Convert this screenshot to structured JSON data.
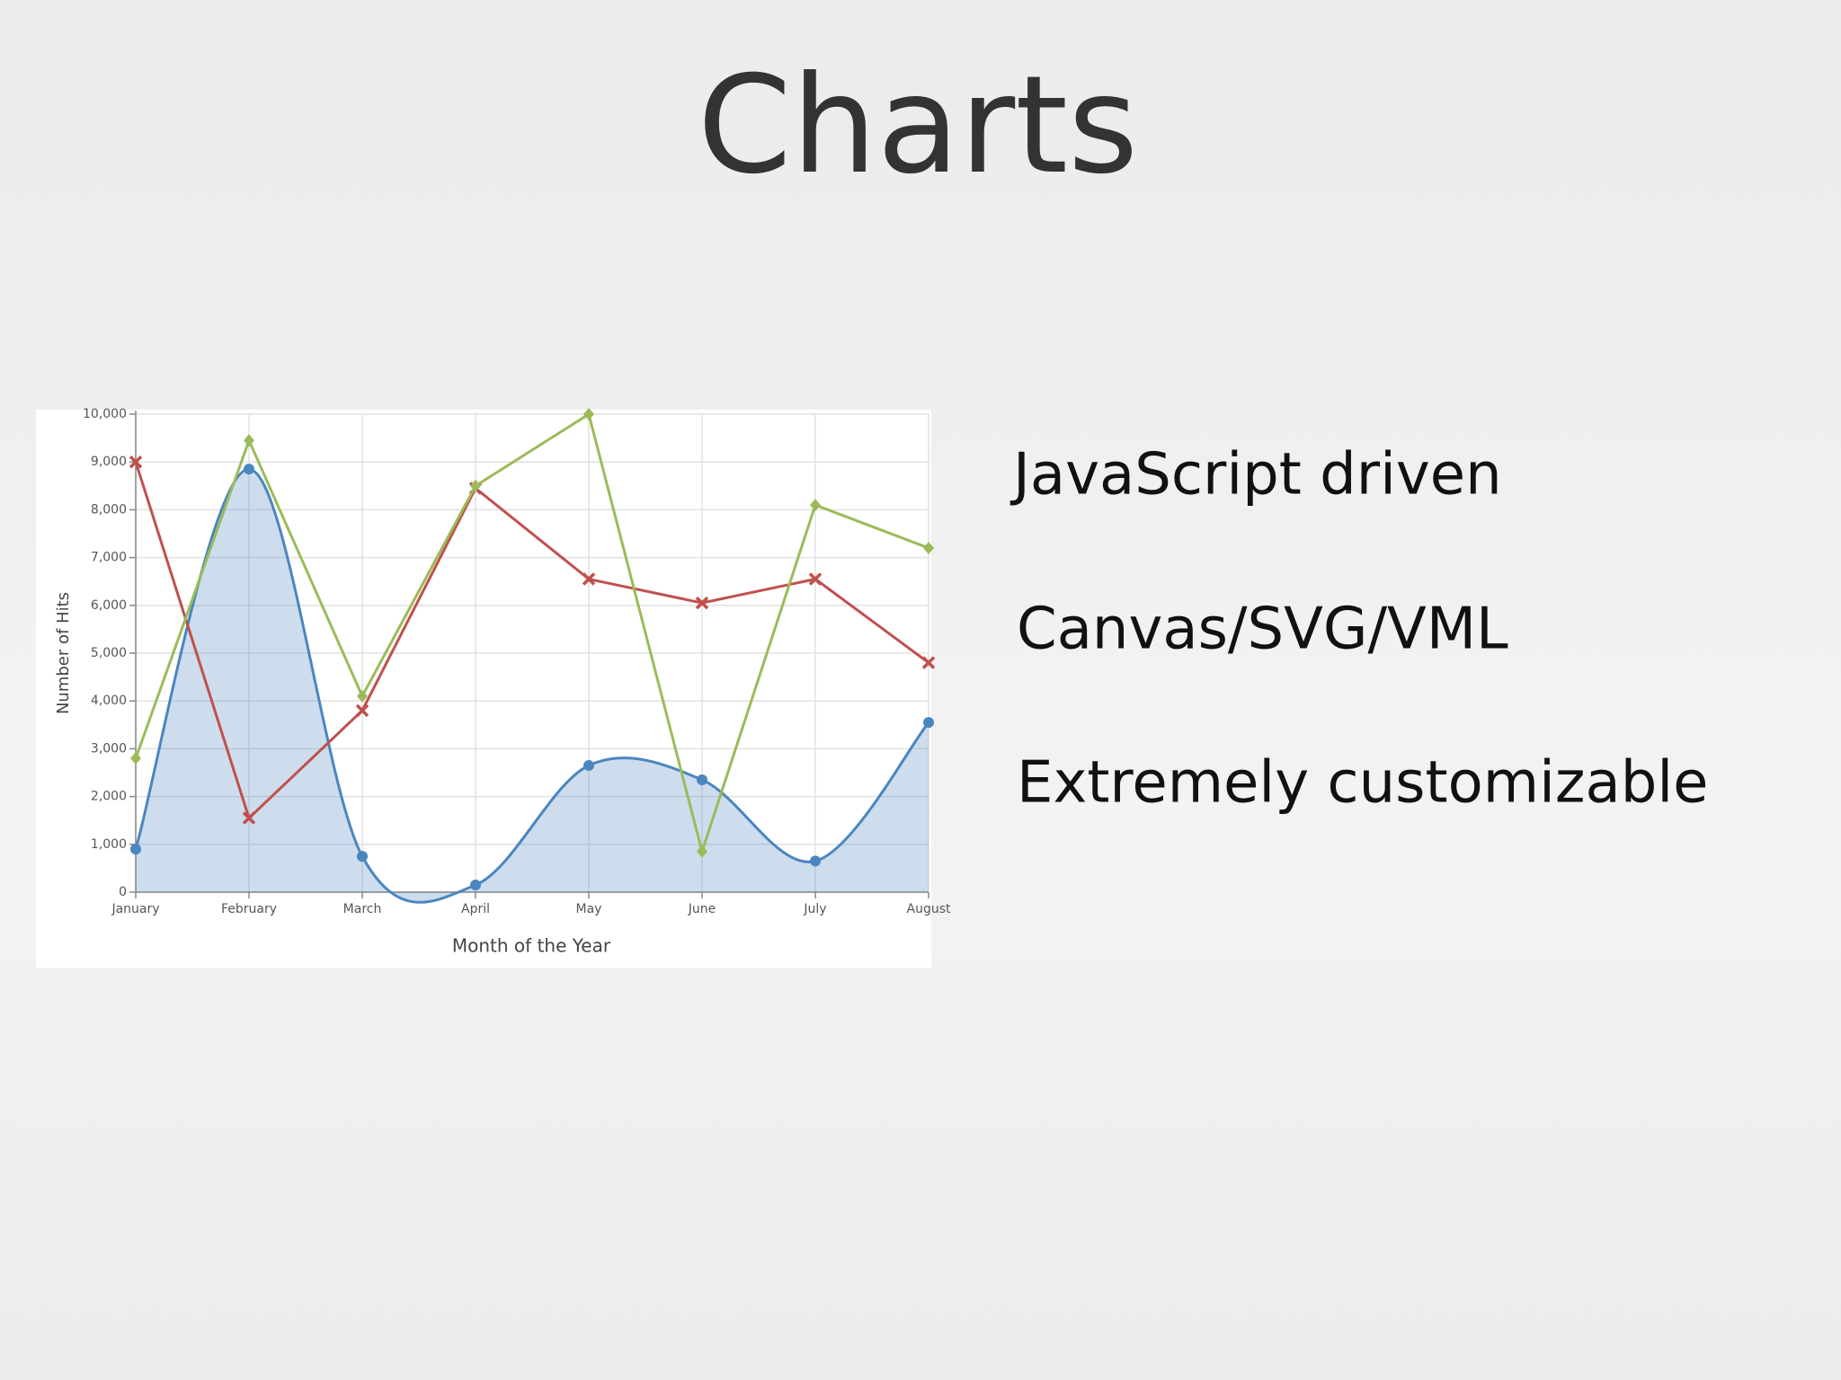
{
  "title": "Charts",
  "bullets": [
    "JavaScript driven",
    "Canvas/SVG/VML",
    "Extremely customizable"
  ],
  "chart_data": {
    "type": "line",
    "x_label": "Month of the Year",
    "y_label": "Number of Hits",
    "categories": [
      "January",
      "February",
      "March",
      "April",
      "May",
      "June",
      "July",
      "August"
    ],
    "series": [
      {
        "color": "#4a86c0",
        "area": true,
        "smooth": true,
        "marker": "circle",
        "values": [
          900,
          8850,
          750,
          150,
          2650,
          2350,
          650,
          3550
        ]
      },
      {
        "color": "#c0504d",
        "area": false,
        "smooth": false,
        "marker": "cross",
        "values": [
          9000,
          1550,
          3800,
          8450,
          6550,
          6050,
          6550,
          4800
        ]
      },
      {
        "color": "#9bbb59",
        "area": false,
        "smooth": false,
        "marker": "diamond",
        "values": [
          2800,
          9450,
          4100,
          8500,
          10000,
          850,
          8100,
          7200
        ]
      }
    ],
    "ylim": [
      0,
      10000
    ],
    "yticks": [
      0,
      {
        "value": 1000,
        "label": "1,000"
      },
      {
        "value": 2000,
        "label": "2,000"
      },
      {
        "value": 3000,
        "label": "3,000"
      },
      {
        "value": 4000,
        "label": "4,000"
      },
      {
        "value": 5000,
        "label": "5,000"
      },
      {
        "value": 6000,
        "label": "6,000"
      },
      {
        "value": 7000,
        "label": "7,000"
      },
      {
        "value": 8000,
        "label": "8,000"
      },
      {
        "value": 9000,
        "label": "9,000"
      },
      {
        "value": 10000,
        "label": "10,000"
      }
    ],
    "grid": true
  }
}
